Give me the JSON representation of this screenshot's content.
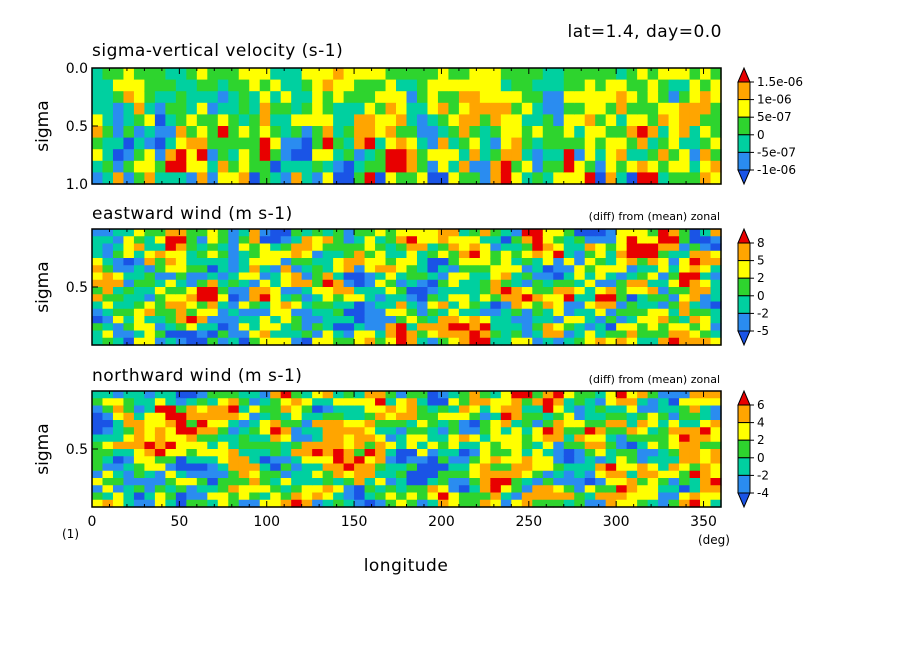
{
  "header": {
    "info": "lat=1.4, day=0.0"
  },
  "xaxis": {
    "label": "longitude",
    "unit": "(deg)",
    "multiplier": "(1)",
    "range": [
      0,
      360
    ],
    "ticks": [
      "0",
      "50",
      "100",
      "150",
      "200",
      "250",
      "300",
      "350"
    ],
    "tick_values": [
      0,
      50,
      100,
      150,
      200,
      250,
      300,
      350
    ]
  },
  "palette": {
    "dark_blue": "#1a54e6",
    "blue": "#2a8cf0",
    "cyan": "#00d0a0",
    "green": "#2ed42e",
    "yellow": "#ffff00",
    "orange": "#ffa500",
    "red": "#e80000"
  },
  "chart_data": [
    {
      "type": "heatmap",
      "title": "sigma-vertical velocity (s-1)",
      "subtitle": "",
      "xlabel": "longitude",
      "ylabel": "sigma",
      "xlim": [
        0,
        360
      ],
      "ylim": [
        0.0,
        1.0
      ],
      "yticks": [
        "0.0",
        "0.5",
        "1.0"
      ],
      "ytick_values": [
        0.0,
        0.5,
        1.0
      ],
      "colorbar": {
        "labels": [
          "1.5e-06",
          "1e-06",
          "5e-07",
          "0",
          "-5e-07",
          "-1e-06"
        ],
        "levels": [
          1.5e-06,
          1e-06,
          5e-07,
          0,
          -5e-07,
          -1e-06
        ]
      },
      "columns": 60,
      "rows": 10,
      "seed": 11,
      "profile": "vertical"
    },
    {
      "type": "heatmap",
      "title": "eastward wind (m s-1)",
      "subtitle": "(diff) from (mean) zonal",
      "xlabel": "longitude",
      "ylabel": "sigma",
      "xlim": [
        0,
        360
      ],
      "ylim": [
        0.0,
        1.0
      ],
      "yticks": [
        "0.5"
      ],
      "ytick_values": [
        0.5
      ],
      "colorbar": {
        "labels": [
          "8",
          "5",
          "2",
          "0",
          "-2",
          "-5"
        ],
        "levels": [
          8,
          5,
          2,
          0,
          -2,
          -5
        ]
      },
      "columns": 60,
      "rows": 16,
      "seed": 23,
      "profile": "patchy"
    },
    {
      "type": "heatmap",
      "title": "northward wind (m s-1)",
      "subtitle": "(diff) from (mean) zonal",
      "xlabel": "longitude",
      "ylabel": "sigma",
      "xlim": [
        0,
        360
      ],
      "ylim": [
        0.0,
        1.0
      ],
      "yticks": [
        "0.5"
      ],
      "ytick_values": [
        0.5
      ],
      "colorbar": {
        "labels": [
          "6",
          "4",
          "2",
          "0",
          "-2",
          "-4"
        ],
        "levels": [
          6,
          4,
          2,
          0,
          -2,
          -4
        ]
      },
      "columns": 60,
      "rows": 16,
      "seed": 37,
      "profile": "patchy"
    }
  ]
}
